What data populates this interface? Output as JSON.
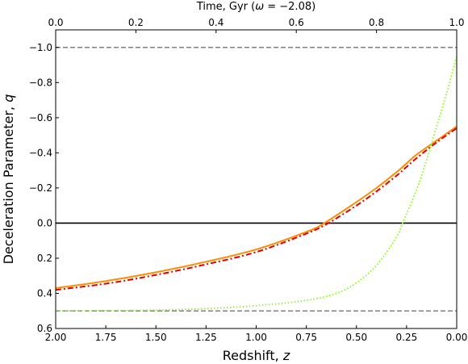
{
  "chart_data": {
    "type": "line",
    "xlabel": "Redshift, z",
    "xlabel_parts": [
      "Redshift, ",
      "z"
    ],
    "ylabel": "Deceleration Parameter, q",
    "ylabel_parts": [
      "Deceleration Parameter, ",
      "q"
    ],
    "top_xlabel": "Time, Gyr (ω = −2.08)",
    "top_xlabel_parts": [
      "Time, Gyr (",
      "ω",
      " = −2.08)"
    ],
    "xlim": [
      2.0,
      0.0
    ],
    "ylim": [
      0.6,
      -1.1
    ],
    "top_xlim": [
      0.0,
      1.0
    ],
    "x_ticks": [
      "2.00",
      "1.75",
      "1.50",
      "1.25",
      "1.00",
      "0.75",
      "0.50",
      "0.25",
      "0.00"
    ],
    "x_tick_values": [
      2.0,
      1.75,
      1.5,
      1.25,
      1.0,
      0.75,
      0.5,
      0.25,
      0.0
    ],
    "y_ticks": [
      "−1.0",
      "−0.8",
      "−0.6",
      "−0.4",
      "−0.2",
      "0.0",
      "0.2",
      "0.4",
      "0.6"
    ],
    "y_tick_values": [
      -1.0,
      -0.8,
      -0.6,
      -0.4,
      -0.2,
      0.0,
      0.2,
      0.4,
      0.6
    ],
    "top_ticks": [
      "0.0",
      "0.2",
      "0.4",
      "0.6",
      "0.8",
      "1.0"
    ],
    "top_tick_values": [
      0.0,
      0.2,
      0.4,
      0.6,
      0.8,
      1.0
    ],
    "reference_lines": [
      {
        "y": -1.0,
        "style": "dashed",
        "color": "#808080"
      },
      {
        "y": 0.5,
        "style": "dashed",
        "color": "#808080"
      },
      {
        "y": 0.0,
        "style": "solid",
        "color": "#000000"
      }
    ],
    "series": [
      {
        "color": "#ff8c00",
        "style": "solid",
        "x": [
          2.0,
          1.75,
          1.5,
          1.25,
          1.0,
          0.75,
          0.66,
          0.5,
          0.4,
          0.3,
          0.25,
          0.2,
          0.1,
          0.0
        ],
        "y": [
          0.37,
          0.33,
          0.28,
          0.22,
          0.15,
          0.05,
          0.0,
          -0.12,
          -0.2,
          -0.29,
          -0.34,
          -0.39,
          -0.47,
          -0.55
        ]
      },
      {
        "color": "#e00000",
        "style": "dashdot",
        "x": [
          2.0,
          1.75,
          1.5,
          1.25,
          1.0,
          0.75,
          0.64,
          0.5,
          0.4,
          0.3,
          0.25,
          0.2,
          0.1,
          0.0
        ],
        "y": [
          0.38,
          0.345,
          0.295,
          0.235,
          0.165,
          0.06,
          0.0,
          -0.1,
          -0.18,
          -0.27,
          -0.32,
          -0.37,
          -0.46,
          -0.54
        ]
      },
      {
        "color": "#7fff00",
        "style": "dotted",
        "x": [
          2.0,
          1.75,
          1.5,
          1.25,
          1.0,
          0.75,
          0.6,
          0.5,
          0.4,
          0.3,
          0.27,
          0.2,
          0.15,
          0.1,
          0.05,
          0.0
        ],
        "y": [
          0.5,
          0.498,
          0.495,
          0.487,
          0.47,
          0.44,
          0.4,
          0.34,
          0.24,
          0.08,
          0.0,
          -0.19,
          -0.36,
          -0.55,
          -0.74,
          -0.95
        ]
      }
    ]
  }
}
